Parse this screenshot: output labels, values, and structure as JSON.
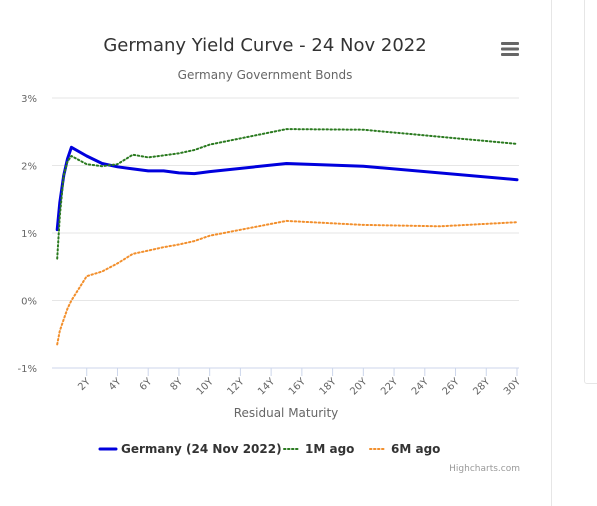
{
  "chart_data": {
    "type": "line",
    "title": "Germany Yield Curve - 24 Nov 2022",
    "subtitle": "Germany Government Bonds",
    "xlabel": "Residual Maturity",
    "ylabel": "",
    "ylim": [
      -1,
      3
    ],
    "xlim": [
      0,
      30
    ],
    "x_ticks": [
      2,
      4,
      6,
      8,
      10,
      12,
      14,
      16,
      18,
      20,
      22,
      24,
      26,
      28,
      30
    ],
    "x_tick_labels": [
      "2Y",
      "4Y",
      "6Y",
      "8Y",
      "10Y",
      "12Y",
      "14Y",
      "16Y",
      "18Y",
      "20Y",
      "22Y",
      "24Y",
      "26Y",
      "28Y",
      "30Y"
    ],
    "y_ticks": [
      -1,
      0,
      1,
      2,
      3
    ],
    "y_tick_labels": [
      "-1%",
      "0%",
      "1%",
      "2%",
      "3%"
    ],
    "grid": true,
    "legend_position": "bottom",
    "series": [
      {
        "name": "Germany (24 Nov 2022)",
        "color": "#0000dd",
        "style": "solid",
        "x": [
          0.08,
          0.25,
          0.5,
          0.75,
          1,
          2,
          3,
          4,
          5,
          6,
          7,
          8,
          9,
          10,
          15,
          20,
          30
        ],
        "y": [
          1.05,
          1.45,
          1.85,
          2.1,
          2.27,
          2.14,
          2.03,
          1.98,
          1.95,
          1.92,
          1.92,
          1.89,
          1.88,
          1.91,
          2.03,
          1.99,
          1.79
        ]
      },
      {
        "name": "1M ago",
        "color": "#2a7a1f",
        "style": "dotted",
        "x": [
          0.08,
          0.25,
          0.5,
          0.75,
          1,
          2,
          3,
          4,
          5,
          6,
          7,
          8,
          9,
          10,
          15,
          20,
          30
        ],
        "y": [
          0.62,
          1.25,
          1.85,
          2.06,
          2.14,
          2.02,
          1.99,
          2.02,
          2.16,
          2.12,
          2.15,
          2.18,
          2.23,
          2.31,
          2.54,
          2.53,
          2.32
        ]
      },
      {
        "name": "6M ago",
        "color": "#f28f2c",
        "style": "dotted",
        "x": [
          0.08,
          0.25,
          0.5,
          0.75,
          1,
          2,
          3,
          4,
          5,
          6,
          7,
          8,
          9,
          10,
          15,
          20,
          25,
          30
        ],
        "y": [
          -0.65,
          -0.45,
          -0.28,
          -0.12,
          0.0,
          0.36,
          0.43,
          0.55,
          0.69,
          0.74,
          0.79,
          0.83,
          0.88,
          0.96,
          1.18,
          1.12,
          1.1,
          1.16
        ]
      }
    ],
    "credits": "Highcharts.com"
  },
  "menu": {
    "icon": "hamburger-menu-icon"
  }
}
